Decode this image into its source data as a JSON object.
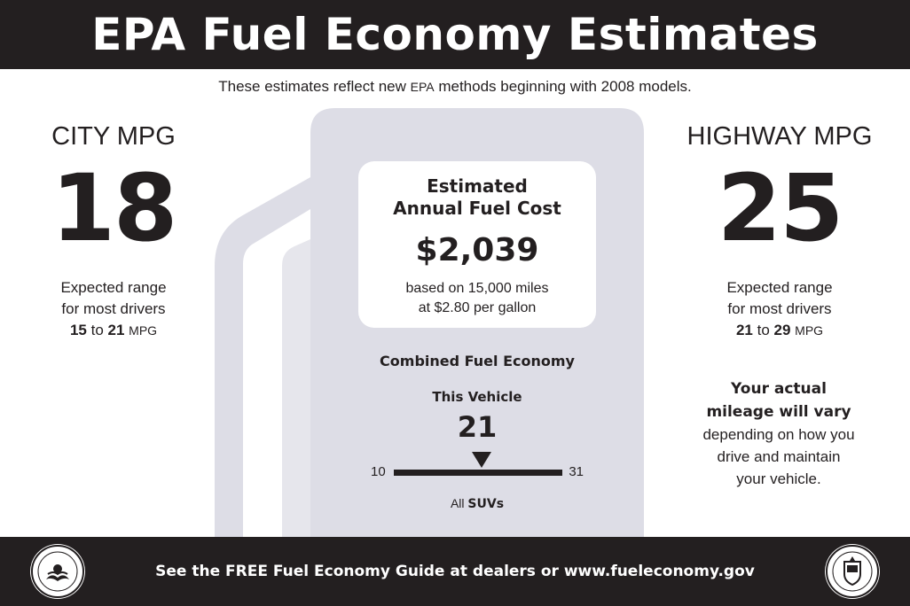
{
  "header": {
    "title": "EPA Fuel Economy Estimates"
  },
  "subtitle": {
    "before": "These estimates reflect new ",
    "epa": "EPA",
    "after": " methods beginning with 2008 models."
  },
  "city": {
    "label": "CITY MPG",
    "value": "18",
    "range_line1": "Expected range",
    "range_line2": "for most drivers",
    "range_low": "15",
    "range_to": "to",
    "range_high": "21",
    "unit": "MPG"
  },
  "highway": {
    "label": "HIGHWAY MPG",
    "value": "25",
    "range_line1": "Expected range",
    "range_line2": "for most drivers",
    "range_low": "21",
    "range_to": "to",
    "range_high": "29",
    "unit": "MPG"
  },
  "annual_cost": {
    "title_line1": "Estimated",
    "title_line2": "Annual Fuel Cost",
    "value": "$2,039",
    "basis_line1": "based on 15,000 miles",
    "basis_line2": "at $2.80 per gallon"
  },
  "combined": {
    "title": "Combined Fuel Economy",
    "this_vehicle": "This Vehicle",
    "value": "21",
    "scale_min": "10",
    "scale_max": "31",
    "class_prefix": "All ",
    "class_name": "SUVs"
  },
  "note": {
    "bold_line1": "Your actual",
    "bold_line2": "mileage will vary",
    "line3": "depending on how you",
    "line4": "drive and maintain",
    "line5": "your vehicle."
  },
  "footer": {
    "text": "See the FREE Fuel Economy Guide at dealers or www.fueleconomy.gov"
  },
  "colors": {
    "dark": "#231f20",
    "pump_gray": "#dddde6"
  },
  "icons": {
    "left_seal": "epa-seal-icon",
    "right_seal": "doe-seal-icon",
    "pump": "gas-pump-icon"
  }
}
